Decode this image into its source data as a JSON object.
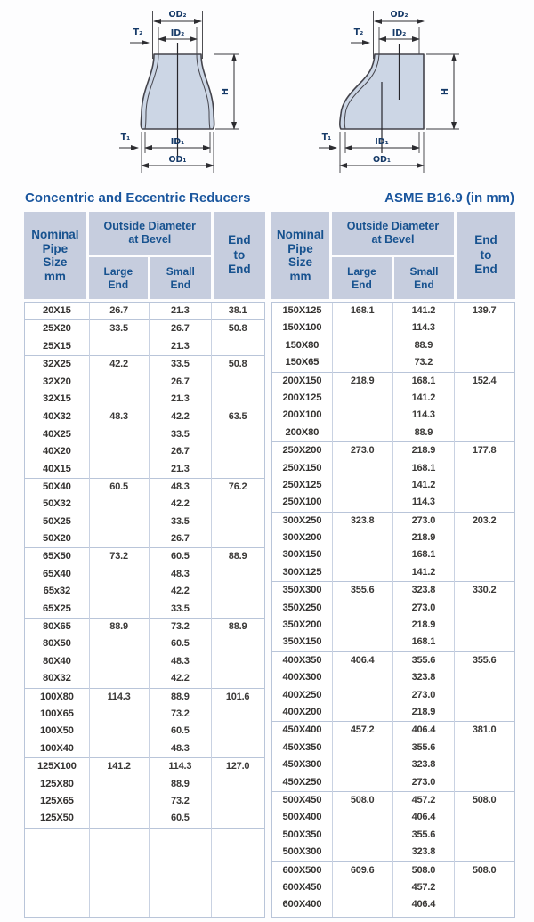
{
  "title": "Concentric and Eccentric Reducers",
  "subtitle": "ASME B16.9 (in mm)",
  "colors": {
    "accent_navy": "#1a569e",
    "header_bg": "#c6cdde",
    "table_border": "#b9c5d9",
    "diagram_fill": "#ccd6e5",
    "data_text": "#3b3937"
  },
  "diagrams": {
    "left_type": "concentric-reducer",
    "right_type": "eccentric-reducer",
    "labels": {
      "od2": "OD₂",
      "id2": "ID₂",
      "t2": "T₂",
      "h": "H",
      "t1": "T₁",
      "id1": "ID₁",
      "od1": "OD₁"
    }
  },
  "headers": {
    "nominal": "Nominal\nPipe\nSize\nmm",
    "od_bevel": "Outside Diameter\nat Bevel",
    "large_end": "Large\nEnd",
    "small_end": "Small\nEnd",
    "end_to_end": "End\nto\nEnd"
  },
  "left_table": {
    "groups": [
      [
        [
          "20X15",
          "26.7",
          "21.3",
          "38.1"
        ]
      ],
      [
        [
          "25X20",
          "33.5",
          "26.7",
          "50.8"
        ],
        [
          "25X15",
          "",
          "21.3",
          ""
        ]
      ],
      [
        [
          "32X25",
          "42.2",
          "33.5",
          "50.8"
        ],
        [
          "32X20",
          "",
          "26.7",
          ""
        ],
        [
          "32X15",
          "",
          "21.3",
          ""
        ]
      ],
      [
        [
          "40X32",
          "48.3",
          "42.2",
          "63.5"
        ],
        [
          "40X25",
          "",
          "33.5",
          ""
        ],
        [
          "40X20",
          "",
          "26.7",
          ""
        ],
        [
          "40X15",
          "",
          "21.3",
          ""
        ]
      ],
      [
        [
          "50X40",
          "60.5",
          "48.3",
          "76.2"
        ],
        [
          "50X32",
          "",
          "42.2",
          ""
        ],
        [
          "50X25",
          "",
          "33.5",
          ""
        ],
        [
          "50X20",
          "",
          "26.7",
          ""
        ]
      ],
      [
        [
          "65X50",
          "73.2",
          "60.5",
          "88.9"
        ],
        [
          "65X40",
          "",
          "48.3",
          ""
        ],
        [
          "65x32",
          "",
          "42.2",
          ""
        ],
        [
          "65X25",
          "",
          "33.5",
          ""
        ]
      ],
      [
        [
          "80X65",
          "88.9",
          "73.2",
          "88.9"
        ],
        [
          "80X50",
          "",
          "60.5",
          ""
        ],
        [
          "80X40",
          "",
          "48.3",
          ""
        ],
        [
          "80X32",
          "",
          "42.2",
          ""
        ]
      ],
      [
        [
          "100X80",
          "114.3",
          "88.9",
          "101.6"
        ],
        [
          "100X65",
          "",
          "73.2",
          ""
        ],
        [
          "100X50",
          "",
          "60.5",
          ""
        ],
        [
          "100X40",
          "",
          "48.3",
          ""
        ]
      ],
      [
        [
          "125X100",
          "141.2",
          "114.3",
          "127.0"
        ],
        [
          "125X80",
          "",
          "88.9",
          ""
        ],
        [
          "125X65",
          "",
          "73.2",
          ""
        ],
        [
          "125X50",
          "",
          "60.5",
          ""
        ]
      ],
      []
    ]
  },
  "right_table": {
    "groups": [
      [
        [
          "150X125",
          "168.1",
          "141.2",
          "139.7"
        ],
        [
          "150X100",
          "",
          "114.3",
          ""
        ],
        [
          "150X80",
          "",
          "88.9",
          ""
        ],
        [
          "150X65",
          "",
          "73.2",
          ""
        ]
      ],
      [
        [
          "200X150",
          "218.9",
          "168.1",
          "152.4"
        ],
        [
          "200X125",
          "",
          "141.2",
          ""
        ],
        [
          "200X100",
          "",
          "114.3",
          ""
        ],
        [
          "200X80",
          "",
          "88.9",
          ""
        ]
      ],
      [
        [
          "250X200",
          "273.0",
          "218.9",
          "177.8"
        ],
        [
          "250X150",
          "",
          "168.1",
          ""
        ],
        [
          "250X125",
          "",
          "141.2",
          ""
        ],
        [
          "250X100",
          "",
          "114.3",
          ""
        ]
      ],
      [
        [
          "300X250",
          "323.8",
          "273.0",
          "203.2"
        ],
        [
          "300X200",
          "",
          "218.9",
          ""
        ],
        [
          "300X150",
          "",
          "168.1",
          ""
        ],
        [
          "300X125",
          "",
          "141.2",
          ""
        ]
      ],
      [
        [
          "350X300",
          "355.6",
          "323.8",
          "330.2"
        ],
        [
          "350X250",
          "",
          "273.0",
          ""
        ],
        [
          "350X200",
          "",
          "218.9",
          ""
        ],
        [
          "350X150",
          "",
          "168.1",
          ""
        ]
      ],
      [
        [
          "400X350",
          "406.4",
          "355.6",
          "355.6"
        ],
        [
          "400X300",
          "",
          "323.8",
          ""
        ],
        [
          "400X250",
          "",
          "273.0",
          ""
        ],
        [
          "400X200",
          "",
          "218.9",
          ""
        ]
      ],
      [
        [
          "450X400",
          "457.2",
          "406.4",
          "381.0"
        ],
        [
          "450X350",
          "",
          "355.6",
          ""
        ],
        [
          "450X300",
          "",
          "323.8",
          ""
        ],
        [
          "450X250",
          "",
          "273.0",
          ""
        ]
      ],
      [
        [
          "500X450",
          "508.0",
          "457.2",
          "508.0"
        ],
        [
          "500X400",
          "",
          "406.4",
          ""
        ],
        [
          "500X350",
          "",
          "355.6",
          ""
        ],
        [
          "500X300",
          "",
          "323.8",
          ""
        ]
      ],
      [
        [
          "600X500",
          "609.6",
          "508.0",
          "508.0"
        ],
        [
          "600X450",
          "",
          "457.2",
          ""
        ],
        [
          "600X400",
          "",
          "406.4",
          ""
        ]
      ]
    ]
  }
}
